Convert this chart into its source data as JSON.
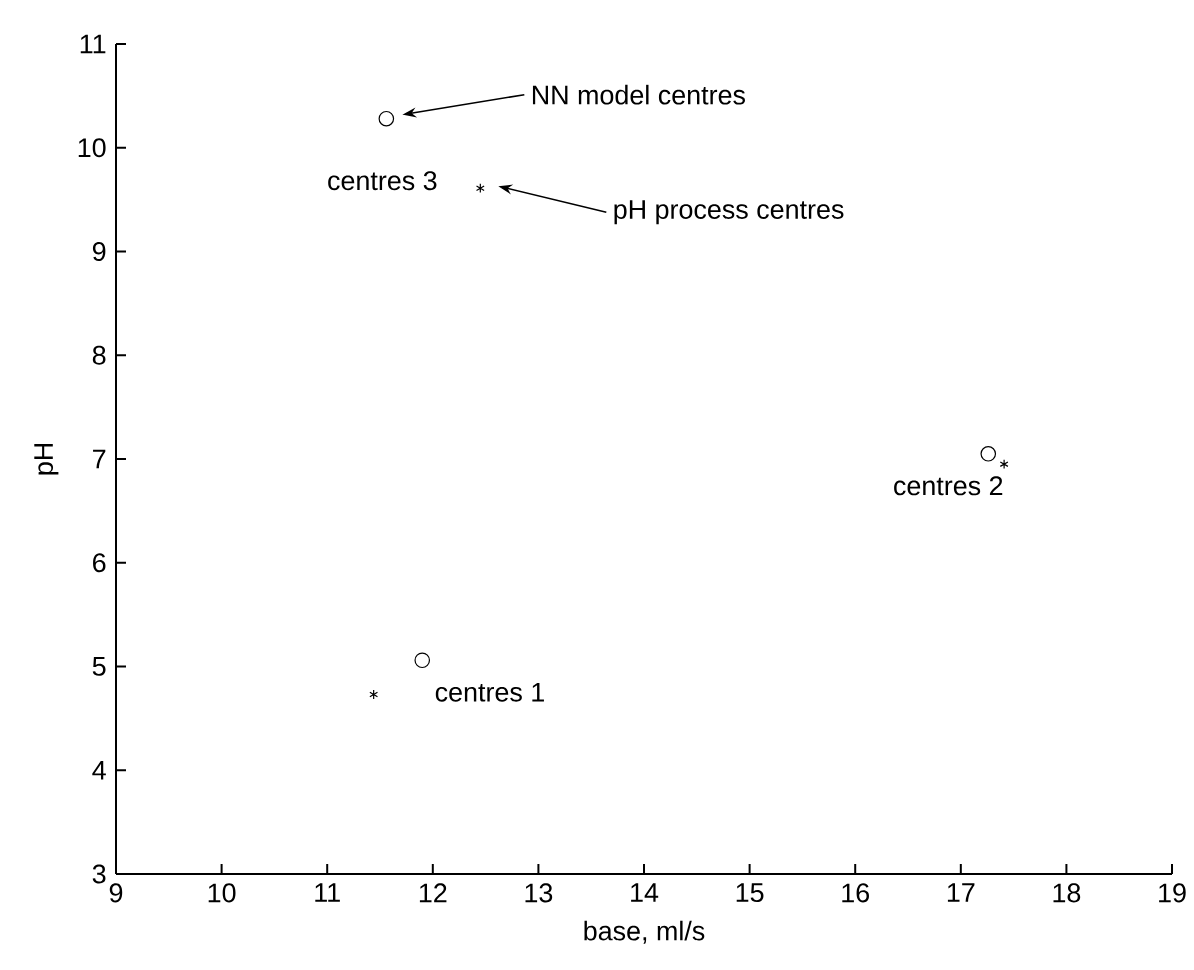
{
  "chart_data": {
    "type": "scatter",
    "xlabel": "base, ml/s",
    "ylabel": "pH",
    "xlim": [
      9,
      19
    ],
    "ylim": [
      3,
      11
    ],
    "xticks": [
      9,
      10,
      11,
      12,
      13,
      14,
      15,
      16,
      17,
      18,
      19
    ],
    "yticks": [
      3,
      4,
      5,
      6,
      7,
      8,
      9,
      10,
      11
    ],
    "grid": false,
    "legend": "top",
    "series": [
      {
        "name": "NN model centres",
        "x": [
          11.9,
          17.26,
          11.56
        ],
        "values": [
          5.06,
          7.05,
          10.28
        ],
        "color": "#000000",
        "marker": "circle"
      },
      {
        "name": "pH process centres",
        "x": [
          11.44,
          17.41,
          12.45
        ],
        "values": [
          4.73,
          6.95,
          9.61
        ],
        "color": "#000000",
        "marker": "cross"
      }
    ],
    "annotations": [
      {
        "text": "centres 1",
        "x": 11.9,
        "y": 5.06
      },
      {
        "text": "centres 2",
        "x": 17.26,
        "y": 7.05
      },
      {
        "text": "centres 3",
        "x": 11.56,
        "y": 10.28
      }
    ]
  }
}
